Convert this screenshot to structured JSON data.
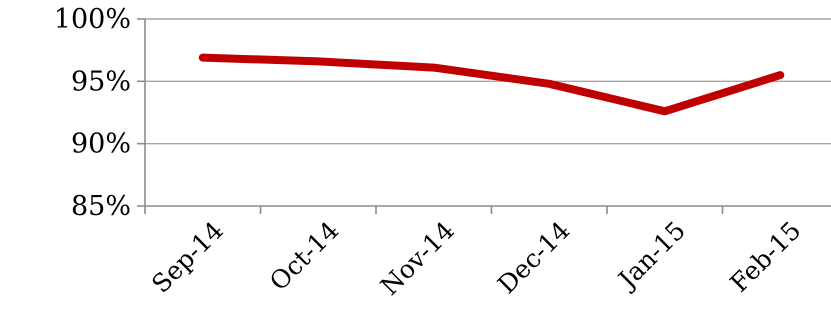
{
  "chart_data": {
    "type": "line",
    "title": "",
    "xlabel": "",
    "ylabel": "",
    "categories": [
      "Sep-14",
      "Oct-14",
      "Nov-14",
      "Dec-14",
      "Jan-15",
      "Feb-15"
    ],
    "series": [
      {
        "values": [
          96.9,
          96.6,
          96.1,
          94.8,
          92.6,
          95.5
        ]
      }
    ],
    "ylim": [
      85,
      100
    ],
    "yticks": [
      85,
      90,
      95,
      100
    ],
    "ytick_labels": [
      "85%",
      "90%",
      "95%",
      "100%"
    ],
    "grid": true,
    "legend": "none",
    "colors": {
      "series": "#c00000"
    }
  }
}
